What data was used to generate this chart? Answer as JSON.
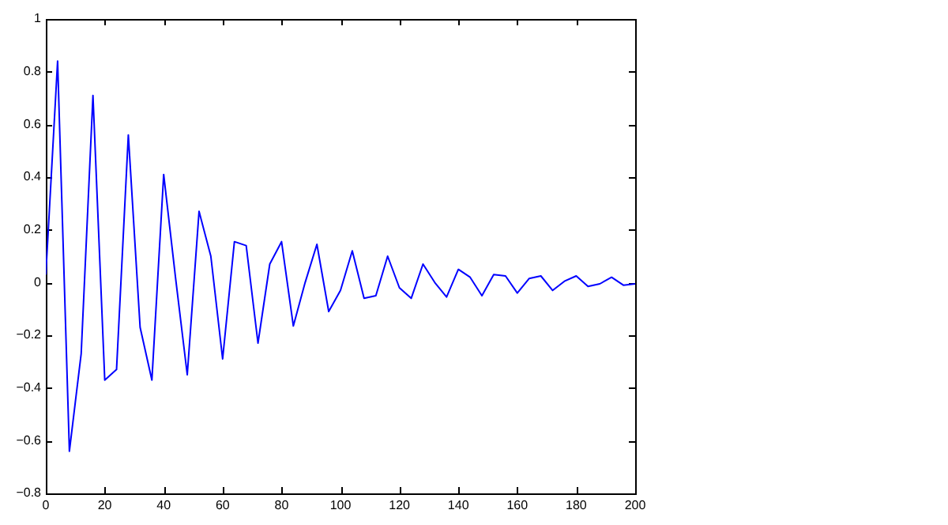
{
  "chart_data": {
    "type": "line",
    "x": [
      0,
      4,
      8,
      12,
      16,
      20,
      24,
      28,
      32,
      36,
      40,
      44,
      48,
      52,
      56,
      60,
      64,
      68,
      72,
      76,
      80,
      84,
      88,
      92,
      96,
      100,
      104,
      108,
      112,
      116,
      120,
      124,
      128,
      132,
      136,
      140,
      144,
      148,
      152,
      156,
      160,
      164,
      168,
      172,
      176,
      180,
      184,
      188,
      192,
      196,
      200
    ],
    "series": [
      {
        "color": "#0000ff",
        "values": [
          0.03,
          0.84,
          -0.64,
          -0.27,
          0.71,
          -0.37,
          -0.33,
          0.56,
          -0.17,
          -0.37,
          0.41,
          0.02,
          -0.35,
          0.27,
          0.1,
          -0.29,
          0.155,
          0.14,
          -0.23,
          0.07,
          0.155,
          -0.165,
          0.0,
          0.145,
          -0.11,
          -0.03,
          0.12,
          -0.06,
          -0.05,
          0.1,
          -0.02,
          -0.06,
          0.07,
          0.0,
          -0.055,
          0.05,
          0.02,
          -0.05,
          0.03,
          0.025,
          -0.04,
          0.015,
          0.025,
          -0.03,
          0.005,
          0.025,
          -0.015,
          -0.005,
          0.02,
          -0.01,
          -0.005
        ]
      }
    ],
    "xlim": [
      0,
      200
    ],
    "xticks": [
      0,
      20,
      40,
      60,
      80,
      100,
      120,
      140,
      160,
      180,
      200
    ],
    "ylim": [
      -0.8,
      1
    ],
    "yticks": [
      -0.8,
      -0.6,
      -0.4,
      -0.2,
      0,
      0.2,
      0.4,
      0.6,
      0.8,
      1
    ],
    "grid": false,
    "legend": false,
    "marker": "none",
    "line_style": "solid"
  }
}
